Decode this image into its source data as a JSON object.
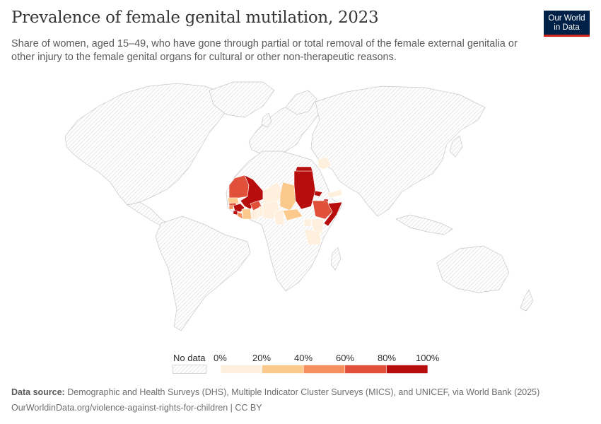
{
  "header": {
    "title": "Prevalence of female genital mutilation, 2023",
    "subtitle": "Share of women, aged 15–49, who have gone through partial or total removal of the female external genitalia or other injury to the female genital organs for cultural or other non-therapeutic reasons.",
    "logo_line1": "Our World",
    "logo_line2": "in Data"
  },
  "colors": {
    "no_data_fill": "#ffffff",
    "no_data_hatch": "#d6d6d6",
    "border": "#c7c7c7",
    "bin_0_20": "#fef0dc",
    "bin_20_40": "#fbc98c",
    "bin_40_60": "#f5905e",
    "bin_60_80": "#e0503a",
    "bin_80_100": "#b80d0d",
    "logo_bg": "#002147",
    "logo_accent": "#ce261e"
  },
  "legend": {
    "no_data_label": "No data",
    "bins": [
      "0%",
      "20%",
      "40%",
      "60%",
      "80%",
      "100%"
    ]
  },
  "map_data": {
    "regions": [
      {
        "name": "Mauritania",
        "bin": "40-60%"
      },
      {
        "name": "Mali",
        "bin": "80-100%"
      },
      {
        "name": "Senegal",
        "bin": "20-40%"
      },
      {
        "name": "Gambia",
        "bin": "60-80%"
      },
      {
        "name": "Guinea-Bissau",
        "bin": "40-60%"
      },
      {
        "name": "Guinea",
        "bin": "80-100%"
      },
      {
        "name": "Sierra Leone",
        "bin": "80-100%"
      },
      {
        "name": "Liberia",
        "bin": "40-60%"
      },
      {
        "name": "Cote d'Ivoire",
        "bin": "20-40%"
      },
      {
        "name": "Burkina Faso",
        "bin": "60-80%"
      },
      {
        "name": "Ghana",
        "bin": "0-20%"
      },
      {
        "name": "Togo",
        "bin": "0-20%"
      },
      {
        "name": "Benin",
        "bin": "0-20%"
      },
      {
        "name": "Nigeria",
        "bin": "0-20%"
      },
      {
        "name": "Niger",
        "bin": "0-20%"
      },
      {
        "name": "Chad",
        "bin": "20-40%"
      },
      {
        "name": "Cameroon",
        "bin": "0-20%"
      },
      {
        "name": "Central African Republic",
        "bin": "20-40%"
      },
      {
        "name": "Sudan",
        "bin": "80-100%"
      },
      {
        "name": "Egypt",
        "bin": "80-100%"
      },
      {
        "name": "Eritrea",
        "bin": "80-100%"
      },
      {
        "name": "Djibouti",
        "bin": "80-100%"
      },
      {
        "name": "Ethiopia",
        "bin": "60-80%"
      },
      {
        "name": "Somalia",
        "bin": "80-100%"
      },
      {
        "name": "Kenya",
        "bin": "0-20%"
      },
      {
        "name": "Uganda",
        "bin": "0-20%"
      },
      {
        "name": "Tanzania",
        "bin": "0-20%"
      },
      {
        "name": "Yemen",
        "bin": "0-20%"
      },
      {
        "name": "Iraq",
        "bin": "0-20%"
      }
    ]
  },
  "footer": {
    "source_label": "Data source:",
    "source_text": "Demographic and Health Surveys (DHS), Multiple Indicator Cluster Surveys (MICS), and UNICEF, via World Bank (2025)",
    "url_line": "OurWorldinData.org/violence-against-rights-for-children | CC BY"
  }
}
